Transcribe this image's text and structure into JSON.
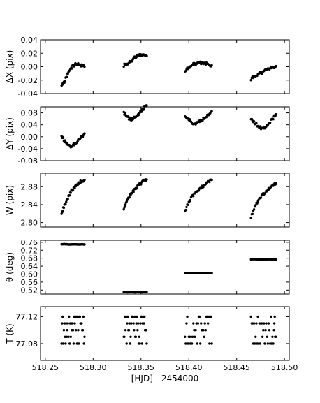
{
  "chart_data": {
    "type": "scatter",
    "xlabel": "[HJD] - 2454000",
    "xlim": [
      518.245,
      518.505
    ],
    "xticks": [
      "518.25",
      "518.30",
      "518.35",
      "518.40",
      "518.45",
      "518.50"
    ],
    "marker_color": "#000000",
    "segments": [
      {
        "start": 518.267,
        "end": 518.291
      },
      {
        "start": 518.332,
        "end": 518.356
      },
      {
        "start": 518.396,
        "end": 518.424
      },
      {
        "start": 518.465,
        "end": 518.491
      }
    ],
    "panels": [
      {
        "id": "dx",
        "ylabel": "ΔX (pix)",
        "ylim": [
          -0.04,
          0.04
        ],
        "yticks": [
          "-0.04",
          "-0.02",
          "0.00",
          "0.02",
          "0.04"
        ],
        "series": [
          {
            "x": [
              518.267,
              518.27,
              518.273,
              518.276,
              518.279,
              518.282,
              518.285,
              518.288,
              518.291
            ],
            "y": [
              -0.03,
              -0.022,
              -0.012,
              -0.004,
              0.001,
              0.004,
              0.004,
              0.002,
              0.0
            ]
          },
          {
            "x": [
              518.332,
              518.335,
              518.338,
              518.341,
              518.344,
              518.347,
              518.35,
              518.353,
              518.356
            ],
            "y": [
              0.002,
              0.004,
              0.007,
              0.01,
              0.014,
              0.017,
              0.018,
              0.017,
              0.016
            ]
          },
          {
            "x": [
              518.396,
              518.4,
              518.404,
              518.408,
              518.412,
              518.416,
              518.42,
              518.424
            ],
            "y": [
              -0.006,
              -0.001,
              0.003,
              0.005,
              0.006,
              0.005,
              0.004,
              0.002
            ]
          },
          {
            "x": [
              518.465,
              518.469,
              518.473,
              518.477,
              518.481,
              518.485,
              518.489,
              518.491
            ],
            "y": [
              -0.018,
              -0.014,
              -0.011,
              -0.008,
              -0.005,
              -0.002,
              0.0,
              0.001
            ]
          }
        ]
      },
      {
        "id": "dy",
        "ylabel": "ΔY (pix)",
        "ylim": [
          -0.08,
          0.1
        ],
        "yticks": [
          "-0.08",
          "-0.04",
          "0.00",
          "0.04",
          "0.08"
        ],
        "series": [
          {
            "x": [
              518.267,
              518.27,
              518.273,
              518.276,
              518.279,
              518.282,
              518.285,
              518.288,
              518.291
            ],
            "y": [
              0.0,
              -0.014,
              -0.027,
              -0.033,
              -0.027,
              -0.019,
              -0.01,
              -0.001,
              0.011
            ]
          },
          {
            "x": [
              518.332,
              518.335,
              518.338,
              518.341,
              518.344,
              518.347,
              518.35,
              518.353,
              518.356
            ],
            "y": [
              0.08,
              0.07,
              0.06,
              0.058,
              0.065,
              0.075,
              0.085,
              0.095,
              0.105
            ]
          },
          {
            "x": [
              518.396,
              518.4,
              518.404,
              518.408,
              518.412,
              518.416,
              518.42,
              518.424
            ],
            "y": [
              0.066,
              0.058,
              0.047,
              0.045,
              0.052,
              0.062,
              0.072,
              0.085
            ]
          },
          {
            "x": [
              518.465,
              518.469,
              518.473,
              518.477,
              518.481,
              518.485,
              518.489,
              518.491
            ],
            "y": [
              0.058,
              0.045,
              0.035,
              0.025,
              0.035,
              0.05,
              0.065,
              0.075
            ]
          }
        ]
      },
      {
        "id": "w",
        "ylabel": "W (pix)",
        "ylim": [
          2.79,
          2.91
        ],
        "yticks": [
          "2.80",
          "2.84",
          "2.88"
        ],
        "series": [
          {
            "x": [
              518.267,
              518.27,
              518.273,
              518.276,
              518.279,
              518.282,
              518.285,
              518.288,
              518.291
            ],
            "y": [
              2.82,
              2.838,
              2.852,
              2.866,
              2.874,
              2.882,
              2.888,
              2.892,
              2.895
            ]
          },
          {
            "x": [
              518.332,
              518.335,
              518.338,
              518.341,
              518.344,
              518.347,
              518.35,
              518.353,
              518.356
            ],
            "y": [
              2.828,
              2.845,
              2.858,
              2.868,
              2.876,
              2.882,
              2.888,
              2.893,
              2.896
            ]
          },
          {
            "x": [
              518.396,
              518.4,
              518.404,
              518.408,
              518.412,
              518.416,
              518.42,
              518.424
            ],
            "y": [
              2.826,
              2.846,
              2.86,
              2.87,
              2.877,
              2.883,
              2.89,
              2.895
            ]
          },
          {
            "x": [
              518.465,
              518.469,
              518.473,
              518.477,
              518.481,
              518.485,
              518.489,
              518.491
            ],
            "y": [
              2.812,
              2.836,
              2.852,
              2.862,
              2.87,
              2.878,
              2.884,
              2.888
            ]
          }
        ]
      },
      {
        "id": "theta",
        "ylabel": "θ (deg)",
        "ylim": [
          0.5,
          0.77
        ],
        "yticks": [
          "0.52",
          "0.56",
          "0.60",
          "0.64",
          "0.68",
          "0.72",
          "0.76"
        ],
        "series": [
          {
            "x": [
              518.267,
              518.27,
              518.273,
              518.276,
              518.279,
              518.282,
              518.285,
              518.288,
              518.291
            ],
            "y": [
              0.75,
              0.751,
              0.75,
              0.749,
              0.75,
              0.75,
              0.749,
              0.75,
              0.749
            ]
          },
          {
            "x": [
              518.332,
              518.335,
              518.338,
              518.341,
              518.344,
              518.347,
              518.35,
              518.353,
              518.356
            ],
            "y": [
              0.51,
              0.509,
              0.51,
              0.51,
              0.509,
              0.511,
              0.51,
              0.509,
              0.51
            ]
          },
          {
            "x": [
              518.396,
              518.4,
              518.404,
              518.408,
              518.412,
              518.416,
              518.42,
              518.424
            ],
            "y": [
              0.605,
              0.606,
              0.605,
              0.604,
              0.605,
              0.606,
              0.605,
              0.605
            ]
          },
          {
            "x": [
              518.465,
              518.469,
              518.473,
              518.477,
              518.481,
              518.485,
              518.489,
              518.491
            ],
            "y": [
              0.674,
              0.675,
              0.674,
              0.673,
              0.674,
              0.675,
              0.674,
              0.673
            ]
          }
        ]
      },
      {
        "id": "t",
        "ylabel": "T (K)",
        "ylim": [
          77.055,
          77.135
        ],
        "yticks": [
          "77.08",
          "77.12"
        ],
        "series": [
          {
            "x": [
              518.267,
              518.27,
              518.273,
              518.276,
              518.279,
              518.282,
              518.285,
              518.288,
              518.291
            ],
            "y": [
              77.11,
              77.1,
              77.09,
              77.11,
              77.1,
              77.09,
              77.08,
              77.1,
              77.09
            ]
          },
          {
            "x": [
              518.332,
              518.335,
              518.338,
              518.341,
              518.344,
              518.347,
              518.35,
              518.353,
              518.356
            ],
            "y": [
              77.11,
              77.1,
              77.09,
              77.08,
              77.1,
              77.09,
              77.11,
              77.1,
              77.08
            ]
          },
          {
            "x": [
              518.396,
              518.4,
              518.404,
              518.408,
              518.412,
              518.416,
              518.42,
              518.424
            ],
            "y": [
              77.11,
              77.1,
              77.09,
              77.08,
              77.1,
              77.09,
              77.11,
              77.08
            ]
          },
          {
            "x": [
              518.465,
              518.469,
              518.473,
              518.477,
              518.481,
              518.485,
              518.489,
              518.491
            ],
            "y": [
              77.11,
              77.1,
              77.09,
              77.1,
              77.08,
              77.09,
              77.1,
              77.09
            ]
          }
        ]
      }
    ]
  }
}
